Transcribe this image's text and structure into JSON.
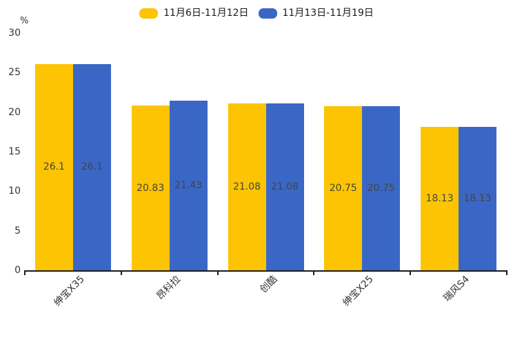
{
  "chart_data": {
    "type": "bar",
    "title": "",
    "ylabel": "%",
    "ylim": [
      0,
      30
    ],
    "yticks": [
      0,
      5,
      10,
      15,
      20,
      25,
      30
    ],
    "grid": false,
    "legend_position": "top",
    "bar_value_labels": true,
    "categories": [
      "绅宝X35",
      "昂科拉",
      "创酷",
      "绅宝X25",
      "瑞风S4"
    ],
    "series": [
      {
        "name": "11月6日-11月12日",
        "color": "#FCC402",
        "values": [
          26.1,
          20.83,
          21.08,
          20.75,
          18.13
        ]
      },
      {
        "name": "11月13日-11月19日",
        "color": "#3A67C6",
        "values": [
          26.1,
          21.43,
          21.08,
          20.75,
          18.13
        ]
      }
    ]
  },
  "colors": {
    "axis": "#1a1a1a",
    "tick_label": "#333333",
    "bar_value_label": "#444444",
    "background": "#ffffff"
  }
}
